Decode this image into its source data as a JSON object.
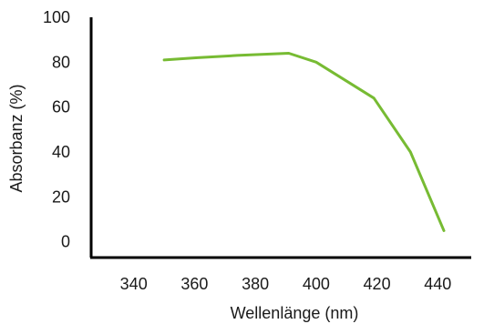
{
  "chart_data": {
    "type": "line",
    "xlabel": "Wellenlänge (nm)",
    "ylabel": "Absorbanz (%)",
    "xlim": [
      326,
      451
    ],
    "ylim": [
      -7,
      100
    ],
    "x_ticks": [
      340,
      360,
      380,
      400,
      420,
      440
    ],
    "y_ticks": [
      0,
      20,
      40,
      60,
      80,
      100
    ],
    "grid": false,
    "line_color": "#77bb33",
    "series": [
      {
        "x": [
          350,
          361,
          374,
          391,
          400,
          419,
          431,
          442
        ],
        "y": [
          81,
          82,
          83,
          84,
          80,
          64,
          40,
          5
        ]
      }
    ]
  }
}
